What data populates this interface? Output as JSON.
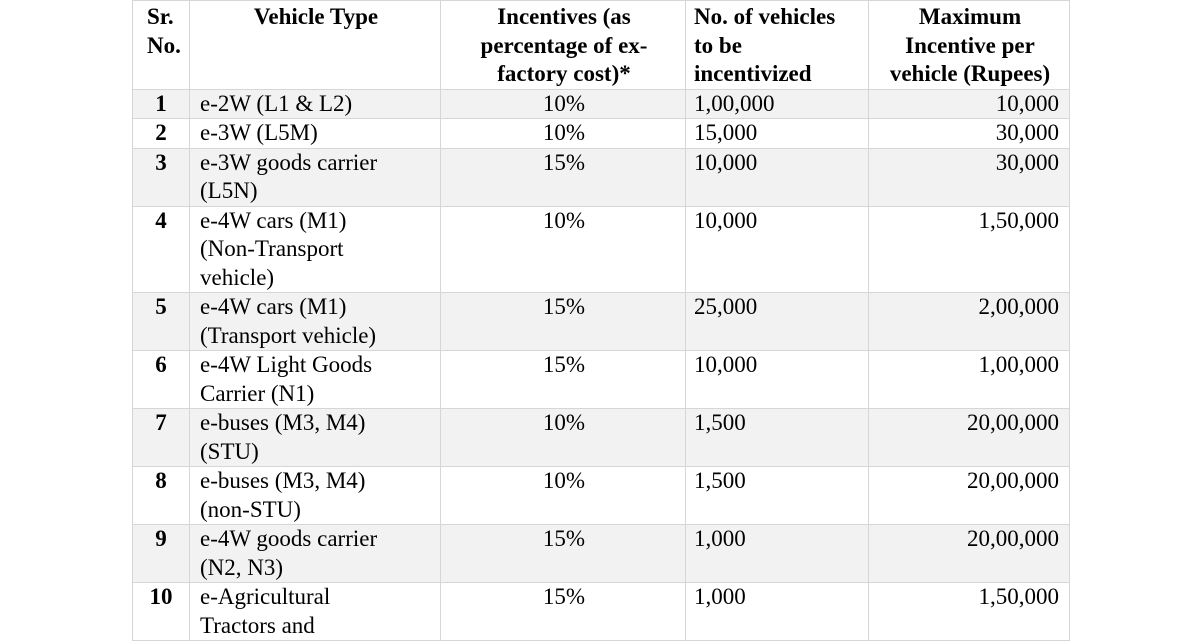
{
  "table": {
    "headers": {
      "sr": [
        "Sr.",
        "No."
      ],
      "vehicle_type": [
        "Vehicle Type"
      ],
      "incentives": [
        "Incentives (as",
        "percentage of ex-",
        "factory cost)*"
      ],
      "num_vehicles": [
        "No. of vehicles",
        "to be",
        "incentivized"
      ],
      "max_incentive": [
        "Maximum",
        "Incentive per",
        "vehicle (Rupees)"
      ]
    },
    "rows": [
      {
        "sr": "1",
        "type": [
          "e-2W (L1 & L2)"
        ],
        "pct": "10%",
        "count": "1,00,000",
        "max": "10,000"
      },
      {
        "sr": "2",
        "type": [
          "e-3W (L5M)"
        ],
        "pct": "10%",
        "count": "15,000",
        "max": "30,000"
      },
      {
        "sr": "3",
        "type": [
          "e-3W goods carrier",
          "(L5N)"
        ],
        "pct": "15%",
        "count": "10,000",
        "max": "30,000"
      },
      {
        "sr": "4",
        "type": [
          "e-4W cars (M1)",
          "(Non-Transport",
          "vehicle)"
        ],
        "pct": "10%",
        "count": "10,000",
        "max": "1,50,000"
      },
      {
        "sr": "5",
        "type": [
          "e-4W cars (M1)",
          "(Transport vehicle)"
        ],
        "pct": "15%",
        "count": "25,000",
        "max": "2,00,000"
      },
      {
        "sr": "6",
        "type": [
          "e-4W Light Goods",
          "Carrier (N1)"
        ],
        "pct": "15%",
        "count": "10,000",
        "max": "1,00,000"
      },
      {
        "sr": "7",
        "type": [
          "e-buses (M3, M4)",
          "(STU)"
        ],
        "pct": "10%",
        "count": "1,500",
        "max": "20,00,000"
      },
      {
        "sr": "8",
        "type": [
          "e-buses (M3, M4)",
          "(non-STU)"
        ],
        "pct": "10%",
        "count": "1,500",
        "max": "20,00,000"
      },
      {
        "sr": "9",
        "type": [
          "e-4W goods carrier",
          "(N2, N3)"
        ],
        "pct": "15%",
        "count": "1,000",
        "max": "20,00,000"
      },
      {
        "sr": "10",
        "type": [
          "e-Agricultural",
          "Tractors and"
        ],
        "pct": "15%",
        "count": "1,000",
        "max": "1,50,000"
      }
    ]
  }
}
